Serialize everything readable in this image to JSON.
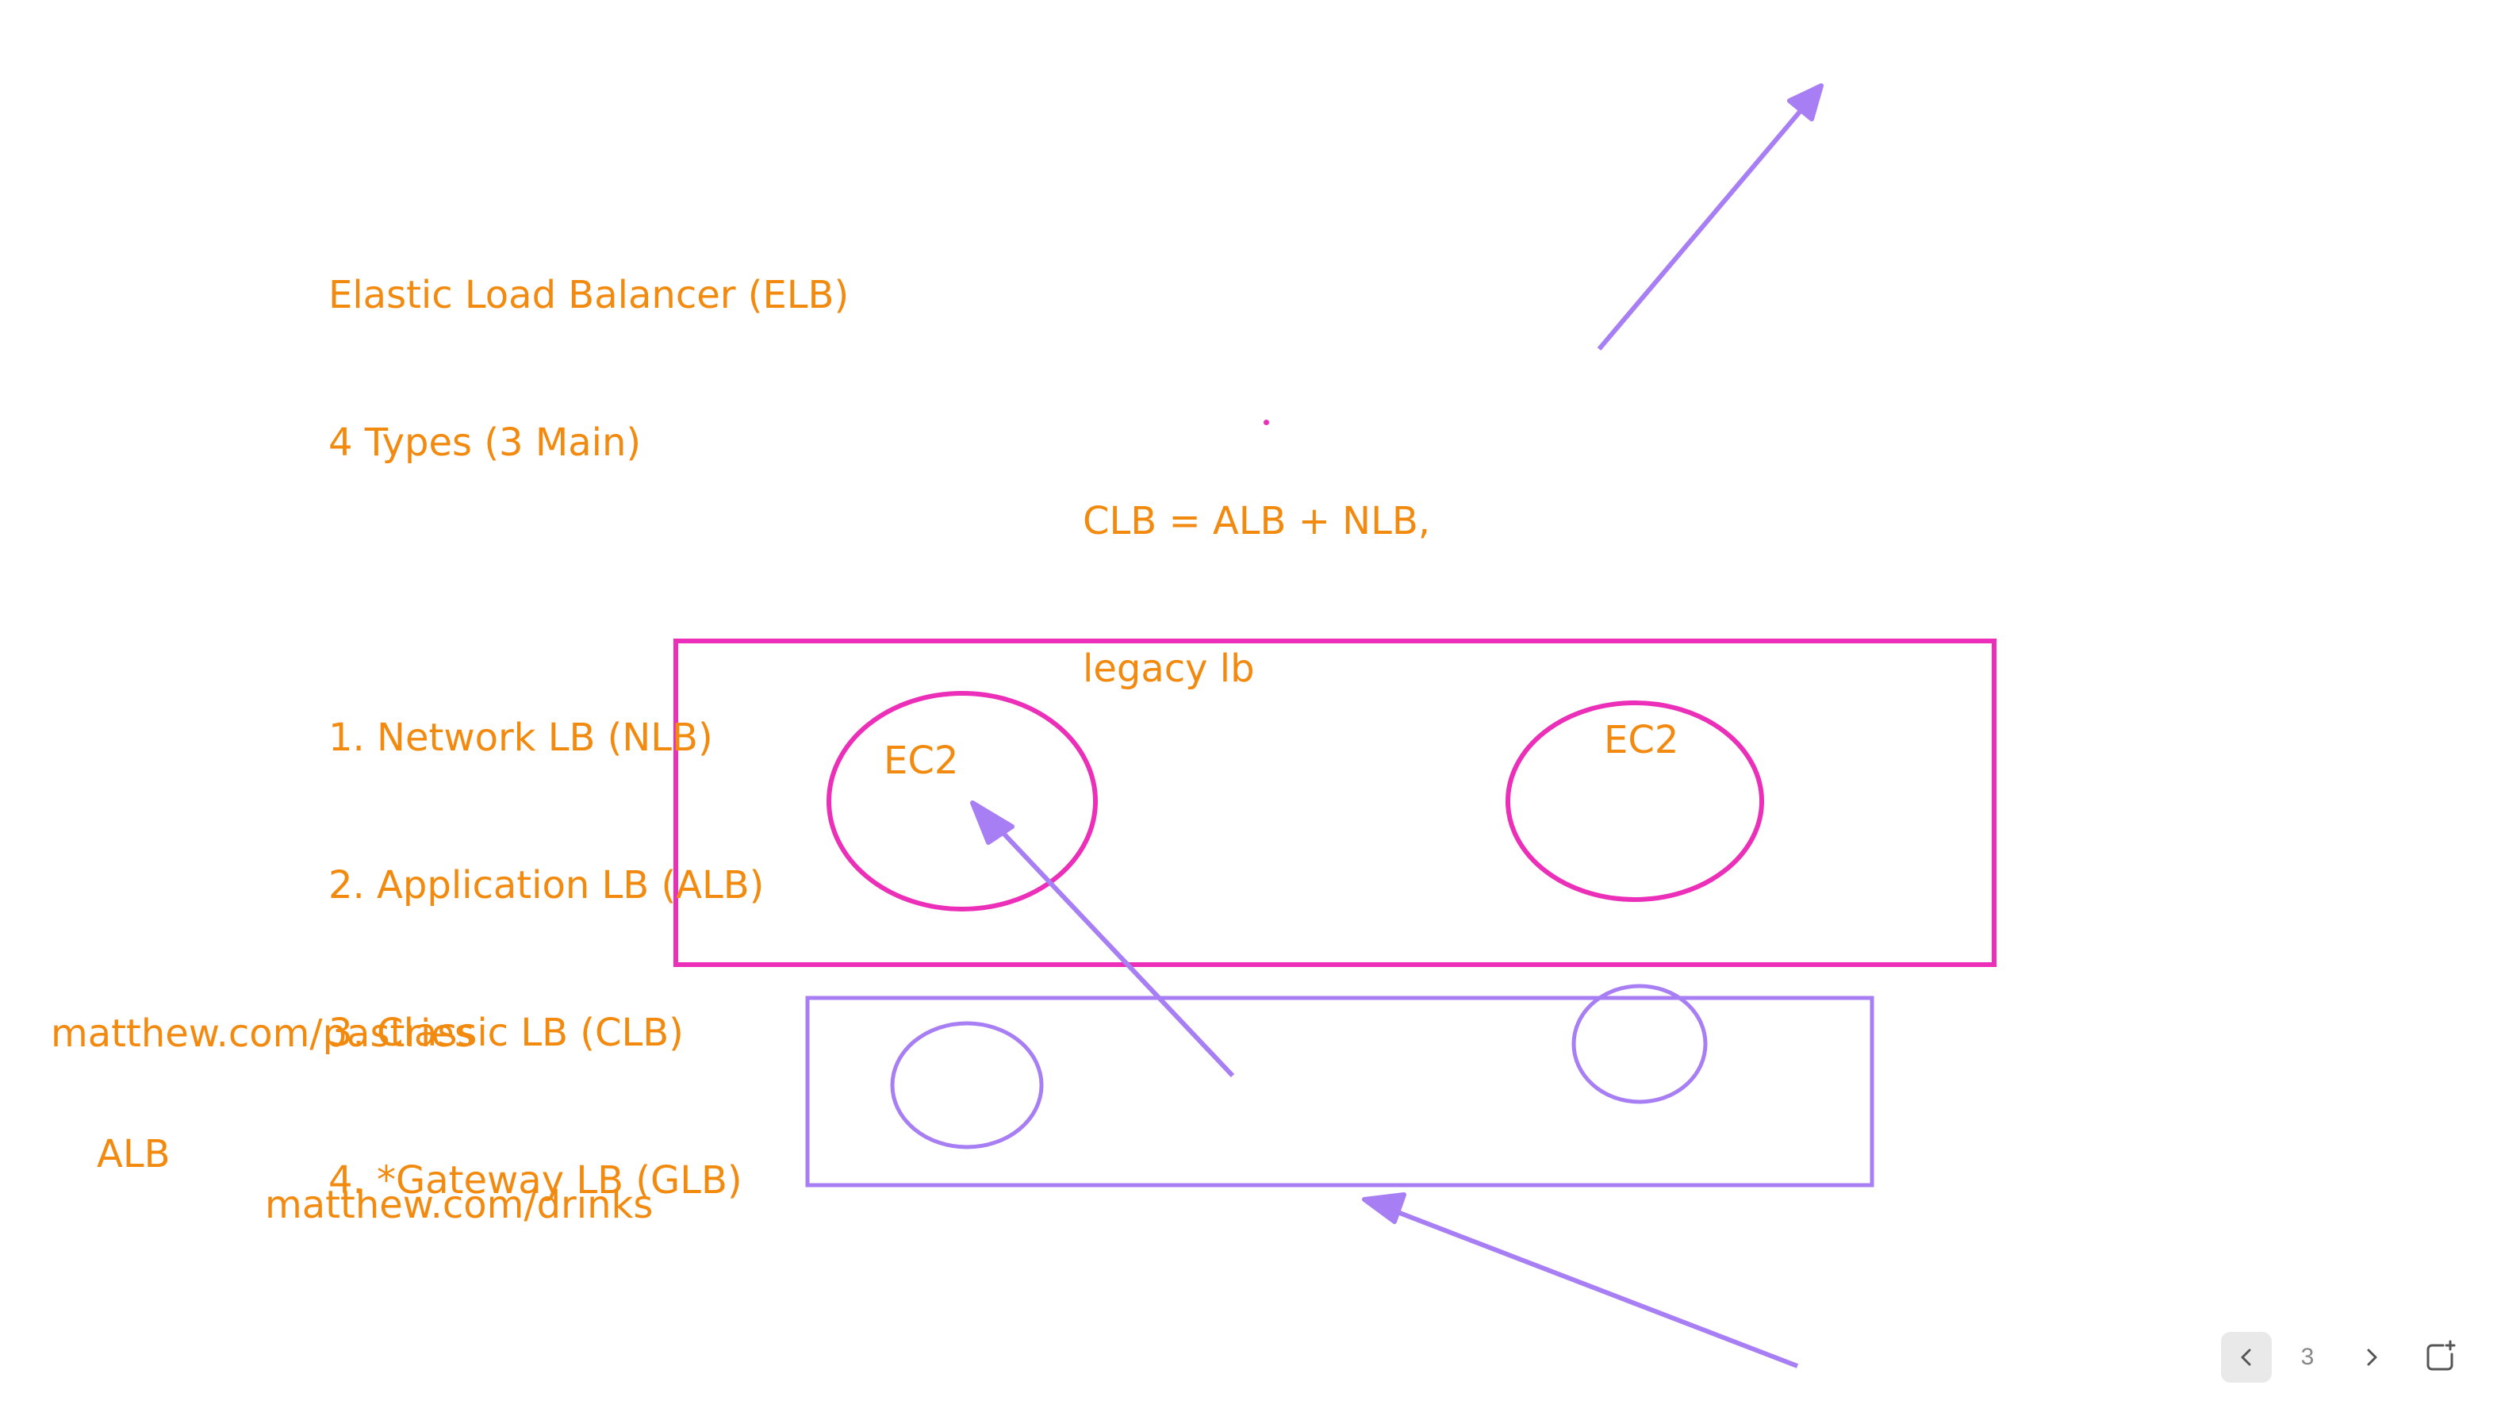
{
  "notes": {
    "lines": [
      "Elastic Load Balancer (ELB)",
      "4 Types (3 Main)",
      "",
      "1. Network LB (NLB)",
      "2. Application LB (ALB)",
      "3. Classic LB (CLB)",
      "4. *Gateway LB (GLB)"
    ]
  },
  "clb_note": {
    "lines": [
      "CLB = ALB + NLB,",
      "legacy lb"
    ]
  },
  "diagram": {
    "ec2_left": "EC2",
    "ec2_right": "EC2",
    "url_pastries": "matthew.com/pastries",
    "alb_label": "ALB",
    "url_drinks": "matthew.com/drinks"
  },
  "colors": {
    "text": "#f28a0f",
    "pink_stroke": "#ec2fb8",
    "purple_stroke": "#a77ef4"
  },
  "pager": {
    "page": "3",
    "prev_icon": "chevron-left-icon",
    "next_icon": "chevron-right-icon",
    "new_page_icon": "new-page-icon"
  }
}
